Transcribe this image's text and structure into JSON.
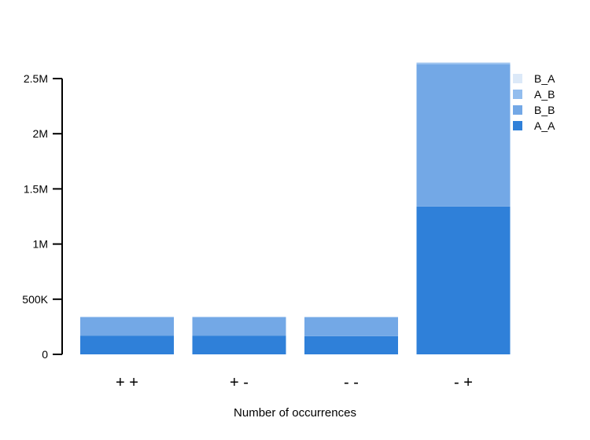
{
  "chart_data": {
    "type": "bar",
    "stacked": true,
    "categories": [
      "+ +",
      "+ -",
      "- -",
      "- +"
    ],
    "series": [
      {
        "name": "A_A",
        "values": [
          170000,
          170000,
          165000,
          1340000
        ],
        "color": "#2f80d9"
      },
      {
        "name": "B_B",
        "values": [
          165000,
          165000,
          170000,
          1290000
        ],
        "color": "#73a8e6"
      },
      {
        "name": "A_B",
        "values": [
          5000,
          5000,
          4000,
          12000
        ],
        "color": "#92bdee"
      },
      {
        "name": "B_A",
        "values": [
          3000,
          3000,
          2000,
          8000
        ],
        "color": "#dce9f8"
      }
    ],
    "legend_order": [
      "B_A",
      "A_B",
      "B_B",
      "A_A"
    ],
    "title": "",
    "xlabel": "Number of occurrences",
    "ylabel": "",
    "ylim": [
      0,
      2500000
    ],
    "yticks": [
      0,
      500000,
      1000000,
      1500000,
      2000000,
      2500000
    ],
    "ytick_labels": [
      "0",
      "500K",
      "1M",
      "1.5M",
      "2M",
      "2.5M"
    ],
    "grid": false,
    "legend_position": "top-right"
  }
}
